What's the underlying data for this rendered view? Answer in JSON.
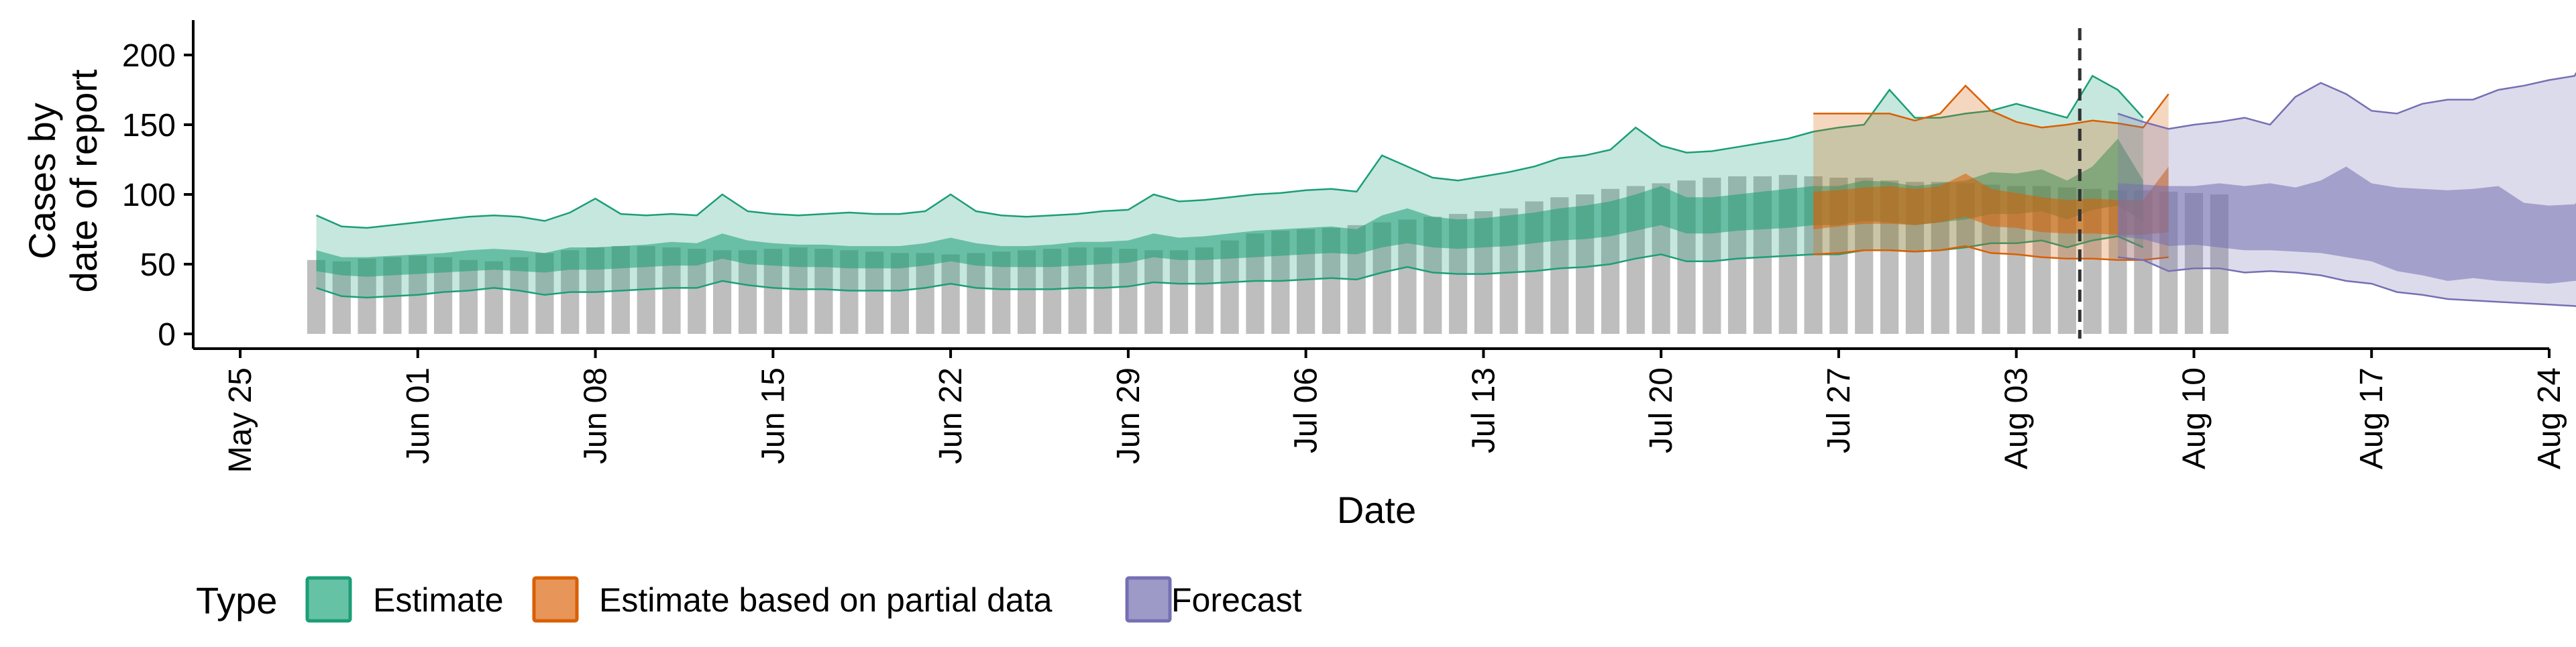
{
  "chart_data": {
    "type": "area",
    "xlabel": "Date",
    "ylabel_lines": [
      "Cases by",
      "date of report"
    ],
    "x_range": [
      "2020-05-25",
      "2020-08-24"
    ],
    "ylim": [
      0,
      225
    ],
    "y_ticks": [
      0,
      50,
      100,
      150,
      200
    ],
    "x_ticks": [
      {
        "date": "2020-05-25",
        "label": "May 25"
      },
      {
        "date": "2020-06-01",
        "label": "Jun 01"
      },
      {
        "date": "2020-06-08",
        "label": "Jun 08"
      },
      {
        "date": "2020-06-15",
        "label": "Jun 15"
      },
      {
        "date": "2020-06-22",
        "label": "Jun 22"
      },
      {
        "date": "2020-06-29",
        "label": "Jun 29"
      },
      {
        "date": "2020-07-06",
        "label": "Jul 06"
      },
      {
        "date": "2020-07-13",
        "label": "Jul 13"
      },
      {
        "date": "2020-07-20",
        "label": "Jul 20"
      },
      {
        "date": "2020-07-27",
        "label": "Jul 27"
      },
      {
        "date": "2020-08-03",
        "label": "Aug 03"
      },
      {
        "date": "2020-08-10",
        "label": "Aug 10"
      },
      {
        "date": "2020-08-17",
        "label": "Aug 17"
      },
      {
        "date": "2020-08-24",
        "label": "Aug 24"
      }
    ],
    "forecast_date": "2020-08-05",
    "grid": false,
    "legend": {
      "title": "Type",
      "placement": "bottom",
      "items": [
        {
          "label": "Estimate",
          "fill": "#66c2a5",
          "border": "#1b9e77"
        },
        {
          "label": "Estimate based on partial data",
          "fill": "#e8955a",
          "border": "#d95f02"
        },
        {
          "label": "Forecast",
          "fill": "#9e9ac8",
          "border": "#7570b3"
        }
      ]
    },
    "colors": {
      "reported_bars": "#bebebe",
      "estimate": "#1b9e77",
      "partial": "#d95f02",
      "forecast": "#7570b3",
      "forecast_line": "#333333"
    },
    "reported_cases": {
      "start_date": "2020-05-28",
      "values": [
        53,
        52,
        54,
        55,
        56,
        55,
        53,
        52,
        55,
        58,
        60,
        62,
        63,
        63,
        62,
        61,
        60,
        60,
        61,
        62,
        61,
        60,
        59,
        58,
        58,
        57,
        58,
        59,
        60,
        61,
        62,
        62,
        61,
        60,
        60,
        62,
        67,
        72,
        74,
        75,
        76,
        78,
        80,
        82,
        84,
        86,
        88,
        90,
        95,
        98,
        100,
        104,
        106,
        108,
        110,
        112,
        113,
        113,
        114,
        113,
        112,
        112,
        110,
        109,
        109,
        108,
        107,
        106,
        106,
        105,
        104,
        103,
        103,
        102,
        101,
        100
      ]
    },
    "series": [
      {
        "name": "Estimate",
        "start_date": "2020-05-28",
        "outer_lower": [
          33,
          27,
          26,
          27,
          28,
          30,
          31,
          33,
          31,
          28,
          30,
          30,
          31,
          32,
          33,
          33,
          38,
          35,
          33,
          32,
          32,
          31,
          31,
          31,
          33,
          36,
          33,
          32,
          32,
          32,
          33,
          33,
          34,
          37,
          36,
          36,
          37,
          38,
          38,
          39,
          40,
          39,
          44,
          48,
          44,
          43,
          43,
          44,
          45,
          47,
          48,
          50,
          54,
          57,
          52,
          52,
          54,
          55,
          56,
          57,
          57,
          60,
          60,
          59,
          60,
          62,
          65,
          65,
          67,
          62,
          67,
          70,
          62
        ],
        "inner_lower": [
          45,
          42,
          41,
          42,
          43,
          44,
          45,
          46,
          45,
          44,
          46,
          46,
          47,
          48,
          49,
          49,
          54,
          50,
          49,
          48,
          48,
          47,
          47,
          47,
          49,
          52,
          49,
          48,
          48,
          48,
          49,
          50,
          51,
          55,
          53,
          53,
          54,
          55,
          56,
          57,
          58,
          57,
          62,
          65,
          62,
          61,
          62,
          63,
          65,
          67,
          68,
          70,
          74,
          78,
          72,
          72,
          74,
          75,
          76,
          78,
          78,
          81,
          80,
          78,
          80,
          82,
          86,
          86,
          88,
          82,
          89,
          92,
          81
        ],
        "inner_upper": [
          60,
          55,
          55,
          56,
          57,
          58,
          60,
          61,
          60,
          58,
          62,
          62,
          63,
          64,
          66,
          65,
          72,
          67,
          65,
          64,
          64,
          63,
          63,
          63,
          65,
          69,
          65,
          63,
          63,
          64,
          66,
          66,
          67,
          72,
          69,
          70,
          72,
          74,
          75,
          76,
          77,
          75,
          85,
          90,
          84,
          82,
          83,
          85,
          87,
          90,
          92,
          95,
          100,
          106,
          98,
          98,
          100,
          102,
          104,
          106,
          106,
          110,
          109,
          106,
          108,
          110,
          116,
          115,
          118,
          110,
          120,
          140,
          110
        ],
        "outer_upper": [
          85,
          77,
          76,
          78,
          80,
          82,
          84,
          85,
          84,
          81,
          87,
          97,
          86,
          85,
          86,
          85,
          100,
          88,
          86,
          85,
          86,
          87,
          86,
          86,
          88,
          100,
          88,
          85,
          84,
          85,
          86,
          88,
          89,
          100,
          95,
          96,
          98,
          100,
          101,
          103,
          104,
          102,
          128,
          120,
          112,
          110,
          113,
          116,
          120,
          126,
          128,
          132,
          148,
          135,
          130,
          131,
          134,
          137,
          140,
          145,
          148,
          150,
          175,
          155,
          155,
          158,
          160,
          165,
          160,
          155,
          185,
          175,
          155
        ]
      },
      {
        "name": "Estimate based on partial data",
        "start_date": "2020-07-26",
        "outer_lower": [
          57,
          58,
          60,
          60,
          59,
          60,
          63,
          58,
          57,
          55,
          54,
          54,
          53,
          53,
          55
        ],
        "inner_lower": [
          75,
          77,
          79,
          79,
          78,
          80,
          84,
          77,
          76,
          73,
          72,
          72,
          71,
          71,
          73
        ],
        "inner_upper": [
          102,
          103,
          105,
          106,
          104,
          106,
          115,
          104,
          101,
          98,
          96,
          97,
          96,
          96,
          120
        ],
        "outer_upper": [
          158,
          158,
          158,
          158,
          153,
          158,
          178,
          160,
          152,
          148,
          150,
          153,
          151,
          148,
          172
        ]
      },
      {
        "name": "Forecast",
        "start_date": "2020-08-07",
        "outer_lower": [
          55,
          53,
          45,
          47,
          47,
          44,
          45,
          44,
          42,
          38,
          36,
          30,
          28,
          25,
          24,
          23,
          22,
          21,
          20,
          17
        ],
        "inner_lower": [
          70,
          68,
          63,
          64,
          62,
          60,
          60,
          59,
          58,
          55,
          52,
          45,
          42,
          38,
          40,
          38,
          37,
          36,
          38,
          38
        ],
        "inner_upper": [
          108,
          107,
          106,
          106,
          108,
          106,
          108,
          105,
          110,
          120,
          108,
          105,
          104,
          103,
          104,
          106,
          94,
          92,
          93,
          110
        ],
        "outer_upper": [
          158,
          152,
          147,
          150,
          152,
          155,
          150,
          170,
          180,
          172,
          160,
          158,
          165,
          168,
          168,
          175,
          178,
          182,
          185,
          215
        ]
      }
    ]
  }
}
